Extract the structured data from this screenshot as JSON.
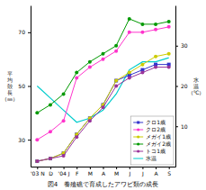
{
  "chart_data": {
    "type": "line",
    "title": "図4　養殖礁で育成したアワビ類の成長",
    "categories": [
      "'03 N",
      "D",
      "'04 J",
      "F",
      "M",
      "A",
      "M",
      "J",
      "J",
      "A",
      "S"
    ],
    "ylabel": "平\n均\n殻\n長\n（㎜）",
    "y2label": "水\n温\n（℃）",
    "ylim": [
      20,
      80
    ],
    "yticks": [
      30,
      50,
      70
    ],
    "y2lim": [
      0,
      40
    ],
    "y2ticks": [
      10,
      20,
      30
    ],
    "grid": false,
    "legend": "lower right",
    "series": [
      {
        "name": "クロ1歳",
        "color": "#3333cc",
        "marker": "square",
        "values": [
          22,
          23,
          25,
          32,
          38,
          43,
          52,
          54,
          56,
          58,
          58
        ]
      },
      {
        "name": "クロ2歳",
        "color": "#ff33cc",
        "marker": "circle",
        "values": [
          30,
          33,
          37,
          53,
          57,
          60,
          63,
          70,
          70,
          71,
          72
        ]
      },
      {
        "name": "メガイ1歳",
        "color": "#cccc00",
        "marker": "circle",
        "values": [
          22,
          23,
          25,
          32,
          38,
          43,
          52,
          55,
          58,
          61,
          62
        ]
      },
      {
        "name": "メガイ2歳",
        "color": "#009900",
        "marker": "circle",
        "values": [
          40,
          43,
          47,
          55,
          59,
          62,
          65,
          75,
          73,
          73,
          74
        ]
      },
      {
        "name": "トコ1歳",
        "color": "#993399",
        "marker": "circle",
        "values": [
          22,
          23,
          24,
          31,
          37,
          42,
          50,
          53,
          55,
          57,
          57
        ]
      },
      {
        "name": "水温",
        "color": "#00cccc",
        "axis": "y2",
        "values": [
          20,
          17,
          14,
          11,
          12,
          14,
          18,
          24,
          26,
          26,
          27
        ]
      }
    ]
  }
}
